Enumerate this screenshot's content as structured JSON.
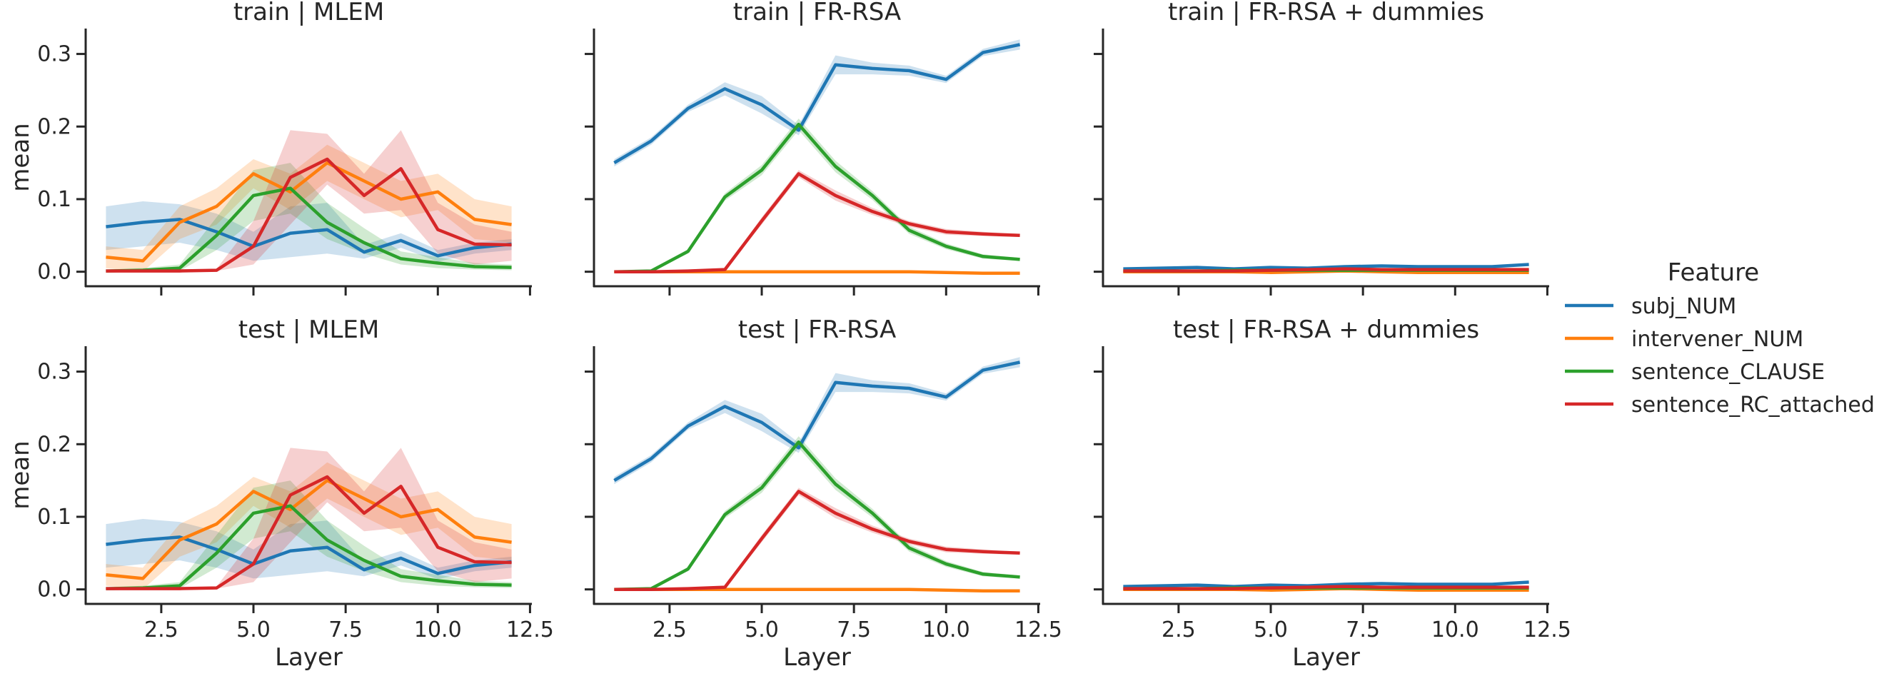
{
  "colors": {
    "subj_NUM": "#1f77b4",
    "intervener_NUM": "#ff7f0e",
    "sentence_CLAUSE": "#2ca02c",
    "sentence_RC_attached": "#d62728"
  },
  "chart_data": {
    "type": "line",
    "facet_rows": [
      "train",
      "test"
    ],
    "facet_cols": [
      "MLEM",
      "FR-RSA",
      "FR-RSA + dummies"
    ],
    "titles": [
      [
        "train | MLEM",
        "train | FR-RSA",
        "train | FR-RSA + dummies"
      ],
      [
        "test | MLEM",
        "test | FR-RSA",
        "test | FR-RSA + dummies"
      ]
    ],
    "xlabel": "Layer",
    "ylabel": "mean",
    "xlim": [
      0.45,
      12.55
    ],
    "ylim": [
      -0.02,
      0.335
    ],
    "xticks": [
      2.5,
      5.0,
      7.5,
      10.0,
      12.5
    ],
    "xticklabels": [
      "2.5",
      "5.0",
      "7.5",
      "10.0",
      "12.5"
    ],
    "yticks": [
      0.0,
      0.1,
      0.2,
      0.3
    ],
    "yticklabels": [
      "0.0",
      "0.1",
      "0.2",
      "0.3"
    ],
    "shared_axes": true,
    "grid": false,
    "legend": {
      "title": "Feature",
      "placement": "center-right",
      "entries": [
        "subj_NUM",
        "intervener_NUM",
        "sentence_CLAUSE",
        "sentence_RC_attached"
      ]
    },
    "x": [
      1,
      2,
      3,
      4,
      5,
      6,
      7,
      8,
      9,
      10,
      11,
      12
    ],
    "panels": {
      "MLEM": {
        "series": [
          {
            "name": "subj_NUM",
            "values": [
              0.062,
              0.068,
              0.072,
              0.055,
              0.035,
              0.053,
              0.058,
              0.027,
              0.043,
              0.022,
              0.033,
              0.038
            ],
            "lower": [
              0.03,
              0.035,
              0.04,
              0.03,
              0.015,
              0.02,
              0.025,
              0.018,
              0.033,
              0.014,
              0.025,
              0.03
            ],
            "upper": [
              0.09,
              0.097,
              0.093,
              0.08,
              0.055,
              0.09,
              0.095,
              0.037,
              0.053,
              0.03,
              0.04,
              0.045
            ]
          },
          {
            "name": "intervener_NUM",
            "values": [
              0.02,
              0.015,
              0.068,
              0.09,
              0.135,
              0.11,
              0.15,
              0.125,
              0.1,
              0.11,
              0.072,
              0.065
            ],
            "lower": [
              0.005,
              0.0,
              0.045,
              0.065,
              0.115,
              0.085,
              0.125,
              0.1,
              0.075,
              0.085,
              0.045,
              0.04
            ],
            "upper": [
              0.035,
              0.03,
              0.09,
              0.115,
              0.155,
              0.135,
              0.175,
              0.15,
              0.125,
              0.135,
              0.1,
              0.09
            ]
          },
          {
            "name": "sentence_CLAUSE",
            "values": [
              0.001,
              0.002,
              0.005,
              0.05,
              0.105,
              0.115,
              0.068,
              0.04,
              0.018,
              0.012,
              0.007,
              0.006
            ],
            "lower": [
              0.0,
              0.0,
              0.001,
              0.03,
              0.07,
              0.08,
              0.045,
              0.025,
              0.01,
              0.005,
              0.003,
              0.002
            ],
            "upper": [
              0.003,
              0.005,
              0.01,
              0.075,
              0.14,
              0.15,
              0.095,
              0.06,
              0.028,
              0.02,
              0.012,
              0.01
            ]
          },
          {
            "name": "sentence_RC_attached",
            "values": [
              0.001,
              0.001,
              0.001,
              0.002,
              0.035,
              0.13,
              0.155,
              0.105,
              0.142,
              0.058,
              0.038,
              0.037
            ],
            "lower": [
              0.0,
              0.0,
              0.0,
              0.001,
              0.01,
              0.065,
              0.12,
              0.08,
              0.085,
              0.025,
              0.01,
              0.015
            ],
            "upper": [
              0.002,
              0.002,
              0.002,
              0.004,
              0.07,
              0.195,
              0.19,
              0.135,
              0.195,
              0.095,
              0.065,
              0.055
            ]
          }
        ]
      },
      "FR-RSA": {
        "series": [
          {
            "name": "subj_NUM",
            "values": [
              0.15,
              0.18,
              0.225,
              0.252,
              0.23,
              0.195,
              0.285,
              0.28,
              0.277,
              0.265,
              0.302,
              0.313
            ],
            "lower": [
              0.145,
              0.175,
              0.22,
              0.243,
              0.218,
              0.188,
              0.272,
              0.272,
              0.27,
              0.26,
              0.297,
              0.306
            ],
            "upper": [
              0.155,
              0.185,
              0.23,
              0.261,
              0.242,
              0.202,
              0.298,
              0.288,
              0.284,
              0.27,
              0.307,
              0.32
            ]
          },
          {
            "name": "intervener_NUM",
            "values": [
              0.0,
              0.0,
              0.0,
              0.0,
              0.0,
              0.0,
              0.0,
              0.0,
              0.0,
              -0.001,
              -0.002,
              -0.002
            ],
            "lower": [
              -0.001,
              -0.001,
              -0.001,
              -0.001,
              -0.001,
              -0.001,
              -0.001,
              -0.001,
              -0.001,
              -0.002,
              -0.003,
              -0.003
            ],
            "upper": [
              0.001,
              0.001,
              0.001,
              0.001,
              0.001,
              0.001,
              0.001,
              0.001,
              0.001,
              0.0,
              -0.001,
              -0.001
            ]
          },
          {
            "name": "sentence_CLAUSE",
            "values": [
              0.0,
              0.001,
              0.028,
              0.103,
              0.14,
              0.203,
              0.145,
              0.105,
              0.057,
              0.035,
              0.021,
              0.017
            ],
            "lower": [
              0.0,
              0.0,
              0.025,
              0.098,
              0.133,
              0.195,
              0.137,
              0.099,
              0.052,
              0.031,
              0.018,
              0.015
            ],
            "upper": [
              0.001,
              0.003,
              0.031,
              0.108,
              0.147,
              0.211,
              0.153,
              0.111,
              0.062,
              0.039,
              0.024,
              0.019
            ]
          },
          {
            "name": "sentence_RC_attached",
            "values": [
              0.0,
              0.0,
              0.001,
              0.003,
              0.07,
              0.135,
              0.105,
              0.083,
              0.066,
              0.055,
              0.052,
              0.05
            ],
            "lower": [
              0.0,
              0.0,
              0.0,
              0.002,
              0.065,
              0.13,
              0.098,
              0.078,
              0.062,
              0.051,
              0.049,
              0.048
            ],
            "upper": [
              0.001,
              0.001,
              0.002,
              0.004,
              0.075,
              0.14,
              0.112,
              0.088,
              0.07,
              0.059,
              0.055,
              0.052
            ]
          }
        ]
      },
      "FR-RSA + dummies": {
        "series": [
          {
            "name": "subj_NUM",
            "values": [
              0.004,
              0.005,
              0.006,
              0.004,
              0.006,
              0.005,
              0.007,
              0.008,
              0.007,
              0.007,
              0.007,
              0.01
            ],
            "lower": [
              0.003,
              0.004,
              0.005,
              0.003,
              0.005,
              0.004,
              0.006,
              0.007,
              0.006,
              0.006,
              0.006,
              0.009
            ],
            "upper": [
              0.005,
              0.006,
              0.007,
              0.005,
              0.007,
              0.006,
              0.008,
              0.009,
              0.008,
              0.008,
              0.008,
              0.011
            ]
          },
          {
            "name": "intervener_NUM",
            "values": [
              0.0,
              0.0,
              0.0,
              0.0,
              -0.001,
              0.0,
              0.001,
              0.0,
              -0.001,
              -0.001,
              -0.001,
              -0.001
            ],
            "lower": [
              -0.001,
              -0.001,
              -0.001,
              -0.001,
              -0.002,
              -0.001,
              0.0,
              -0.001,
              -0.002,
              -0.002,
              -0.002,
              -0.002
            ],
            "upper": [
              0.001,
              0.001,
              0.001,
              0.001,
              0.0,
              0.001,
              0.002,
              0.001,
              0.0,
              0.0,
              0.0,
              0.0
            ]
          },
          {
            "name": "sentence_CLAUSE",
            "values": [
              0.001,
              0.001,
              0.001,
              0.002,
              0.002,
              0.002,
              0.002,
              0.002,
              0.002,
              0.002,
              0.002,
              0.002
            ],
            "lower": [
              0.0,
              0.0,
              0.0,
              0.001,
              0.001,
              0.001,
              0.001,
              0.001,
              0.001,
              0.001,
              0.001,
              0.001
            ],
            "upper": [
              0.002,
              0.002,
              0.002,
              0.003,
              0.003,
              0.003,
              0.003,
              0.003,
              0.003,
              0.003,
              0.003,
              0.003
            ]
          },
          {
            "name": "sentence_RC_attached",
            "values": [
              0.001,
              0.001,
              0.001,
              0.001,
              0.002,
              0.003,
              0.004,
              0.003,
              0.003,
              0.003,
              0.003,
              0.003
            ],
            "lower": [
              0.0,
              0.0,
              0.0,
              0.0,
              0.001,
              0.002,
              0.003,
              0.002,
              0.002,
              0.002,
              0.002,
              0.002
            ],
            "upper": [
              0.002,
              0.002,
              0.002,
              0.002,
              0.003,
              0.004,
              0.005,
              0.004,
              0.004,
              0.004,
              0.004,
              0.004
            ]
          }
        ]
      }
    }
  }
}
